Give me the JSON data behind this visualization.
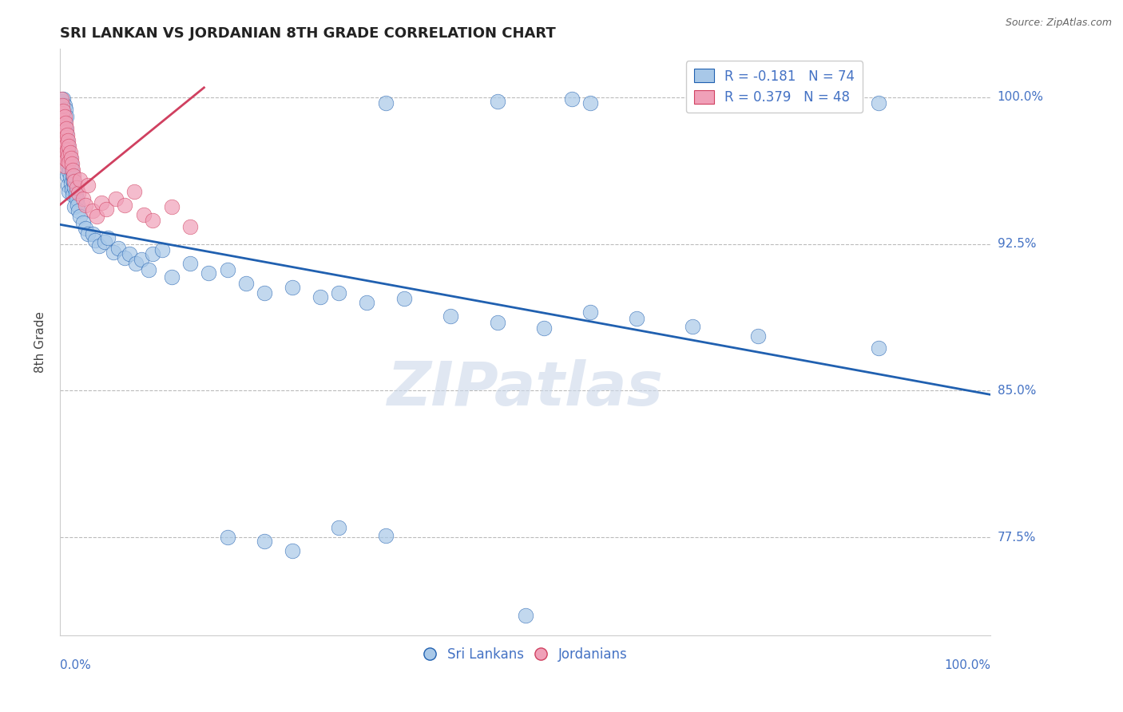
{
  "title": "SRI LANKAN VS JORDANIAN 8TH GRADE CORRELATION CHART",
  "source": "Source: ZipAtlas.com",
  "ylabel": "8th Grade",
  "xlim": [
    0.0,
    1.0
  ],
  "ylim": [
    0.725,
    1.025
  ],
  "yticks": [
    0.775,
    0.85,
    0.925,
    1.0
  ],
  "ytick_labels": [
    "77.5%",
    "85.0%",
    "92.5%",
    "100.0%"
  ],
  "blue_color": "#a8c8e8",
  "pink_color": "#f0a0b8",
  "line_blue": "#2060b0",
  "line_pink": "#d04060",
  "legend_blue_R": "R = -0.181",
  "legend_blue_N": "N = 74",
  "legend_pink_R": "R = 0.379",
  "legend_pink_N": "N = 48",
  "watermark_text": "ZIPatlas",
  "blue_trend_x": [
    0.0,
    1.0
  ],
  "blue_trend_y": [
    0.935,
    0.848
  ],
  "pink_trend_x": [
    0.0,
    0.155
  ],
  "pink_trend_y": [
    0.945,
    1.005
  ],
  "blue_points": [
    [
      0.002,
      0.997
    ],
    [
      0.003,
      0.998
    ],
    [
      0.004,
      0.999
    ],
    [
      0.004,
      0.993
    ],
    [
      0.005,
      0.996
    ],
    [
      0.005,
      0.988
    ],
    [
      0.005,
      0.98
    ],
    [
      0.006,
      0.994
    ],
    [
      0.006,
      0.985
    ],
    [
      0.006,
      0.975
    ],
    [
      0.007,
      0.99
    ],
    [
      0.007,
      0.982
    ],
    [
      0.007,
      0.97
    ],
    [
      0.008,
      0.978
    ],
    [
      0.008,
      0.968
    ],
    [
      0.008,
      0.96
    ],
    [
      0.009,
      0.975
    ],
    [
      0.009,
      0.965
    ],
    [
      0.009,
      0.955
    ],
    [
      0.01,
      0.972
    ],
    [
      0.01,
      0.962
    ],
    [
      0.01,
      0.952
    ],
    [
      0.011,
      0.969
    ],
    [
      0.011,
      0.959
    ],
    [
      0.012,
      0.966
    ],
    [
      0.012,
      0.956
    ],
    [
      0.013,
      0.963
    ],
    [
      0.013,
      0.953
    ],
    [
      0.014,
      0.96
    ],
    [
      0.014,
      0.95
    ],
    [
      0.015,
      0.957
    ],
    [
      0.016,
      0.954
    ],
    [
      0.016,
      0.944
    ],
    [
      0.017,
      0.951
    ],
    [
      0.018,
      0.948
    ],
    [
      0.019,
      0.945
    ],
    [
      0.02,
      0.942
    ],
    [
      0.022,
      0.939
    ],
    [
      0.025,
      0.936
    ],
    [
      0.028,
      0.933
    ],
    [
      0.03,
      0.93
    ],
    [
      0.035,
      0.93
    ],
    [
      0.038,
      0.927
    ],
    [
      0.042,
      0.924
    ],
    [
      0.048,
      0.926
    ],
    [
      0.052,
      0.928
    ],
    [
      0.058,
      0.921
    ],
    [
      0.063,
      0.923
    ],
    [
      0.07,
      0.918
    ],
    [
      0.075,
      0.92
    ],
    [
      0.082,
      0.915
    ],
    [
      0.088,
      0.917
    ],
    [
      0.095,
      0.912
    ],
    [
      0.1,
      0.92
    ],
    [
      0.11,
      0.922
    ],
    [
      0.12,
      0.908
    ],
    [
      0.14,
      0.915
    ],
    [
      0.16,
      0.91
    ],
    [
      0.18,
      0.912
    ],
    [
      0.2,
      0.905
    ],
    [
      0.22,
      0.9
    ],
    [
      0.25,
      0.903
    ],
    [
      0.28,
      0.898
    ],
    [
      0.3,
      0.9
    ],
    [
      0.33,
      0.895
    ],
    [
      0.37,
      0.897
    ],
    [
      0.42,
      0.888
    ],
    [
      0.47,
      0.885
    ],
    [
      0.52,
      0.882
    ],
    [
      0.57,
      0.89
    ],
    [
      0.62,
      0.887
    ],
    [
      0.68,
      0.883
    ],
    [
      0.75,
      0.878
    ],
    [
      0.88,
      0.872
    ]
  ],
  "pink_points": [
    [
      0.002,
      0.999
    ],
    [
      0.002,
      0.992
    ],
    [
      0.003,
      0.996
    ],
    [
      0.003,
      0.988
    ],
    [
      0.003,
      0.98
    ],
    [
      0.004,
      0.993
    ],
    [
      0.004,
      0.985
    ],
    [
      0.004,
      0.977
    ],
    [
      0.004,
      0.969
    ],
    [
      0.005,
      0.99
    ],
    [
      0.005,
      0.982
    ],
    [
      0.005,
      0.974
    ],
    [
      0.005,
      0.965
    ],
    [
      0.006,
      0.987
    ],
    [
      0.006,
      0.978
    ],
    [
      0.006,
      0.97
    ],
    [
      0.007,
      0.984
    ],
    [
      0.007,
      0.976
    ],
    [
      0.007,
      0.968
    ],
    [
      0.008,
      0.981
    ],
    [
      0.008,
      0.973
    ],
    [
      0.009,
      0.978
    ],
    [
      0.009,
      0.97
    ],
    [
      0.01,
      0.975
    ],
    [
      0.01,
      0.967
    ],
    [
      0.011,
      0.972
    ],
    [
      0.012,
      0.969
    ],
    [
      0.013,
      0.966
    ],
    [
      0.014,
      0.963
    ],
    [
      0.015,
      0.96
    ],
    [
      0.016,
      0.957
    ],
    [
      0.018,
      0.954
    ],
    [
      0.02,
      0.951
    ],
    [
      0.022,
      0.958
    ],
    [
      0.025,
      0.948
    ],
    [
      0.028,
      0.945
    ],
    [
      0.03,
      0.955
    ],
    [
      0.035,
      0.942
    ],
    [
      0.04,
      0.939
    ],
    [
      0.045,
      0.946
    ],
    [
      0.05,
      0.943
    ],
    [
      0.06,
      0.948
    ],
    [
      0.07,
      0.945
    ],
    [
      0.08,
      0.952
    ],
    [
      0.09,
      0.94
    ],
    [
      0.1,
      0.937
    ],
    [
      0.12,
      0.944
    ],
    [
      0.14,
      0.934
    ]
  ],
  "extra_blue_high_x": [
    [
      0.35,
      0.997
    ],
    [
      0.47,
      0.998
    ],
    [
      0.55,
      0.999
    ],
    [
      0.57,
      0.997
    ],
    [
      0.72,
      0.997
    ],
    [
      0.88,
      0.997
    ]
  ],
  "extra_blue_low_y": [
    [
      0.18,
      0.775
    ],
    [
      0.22,
      0.773
    ],
    [
      0.25,
      0.768
    ],
    [
      0.3,
      0.78
    ],
    [
      0.35,
      0.776
    ],
    [
      0.5,
      0.735
    ]
  ]
}
